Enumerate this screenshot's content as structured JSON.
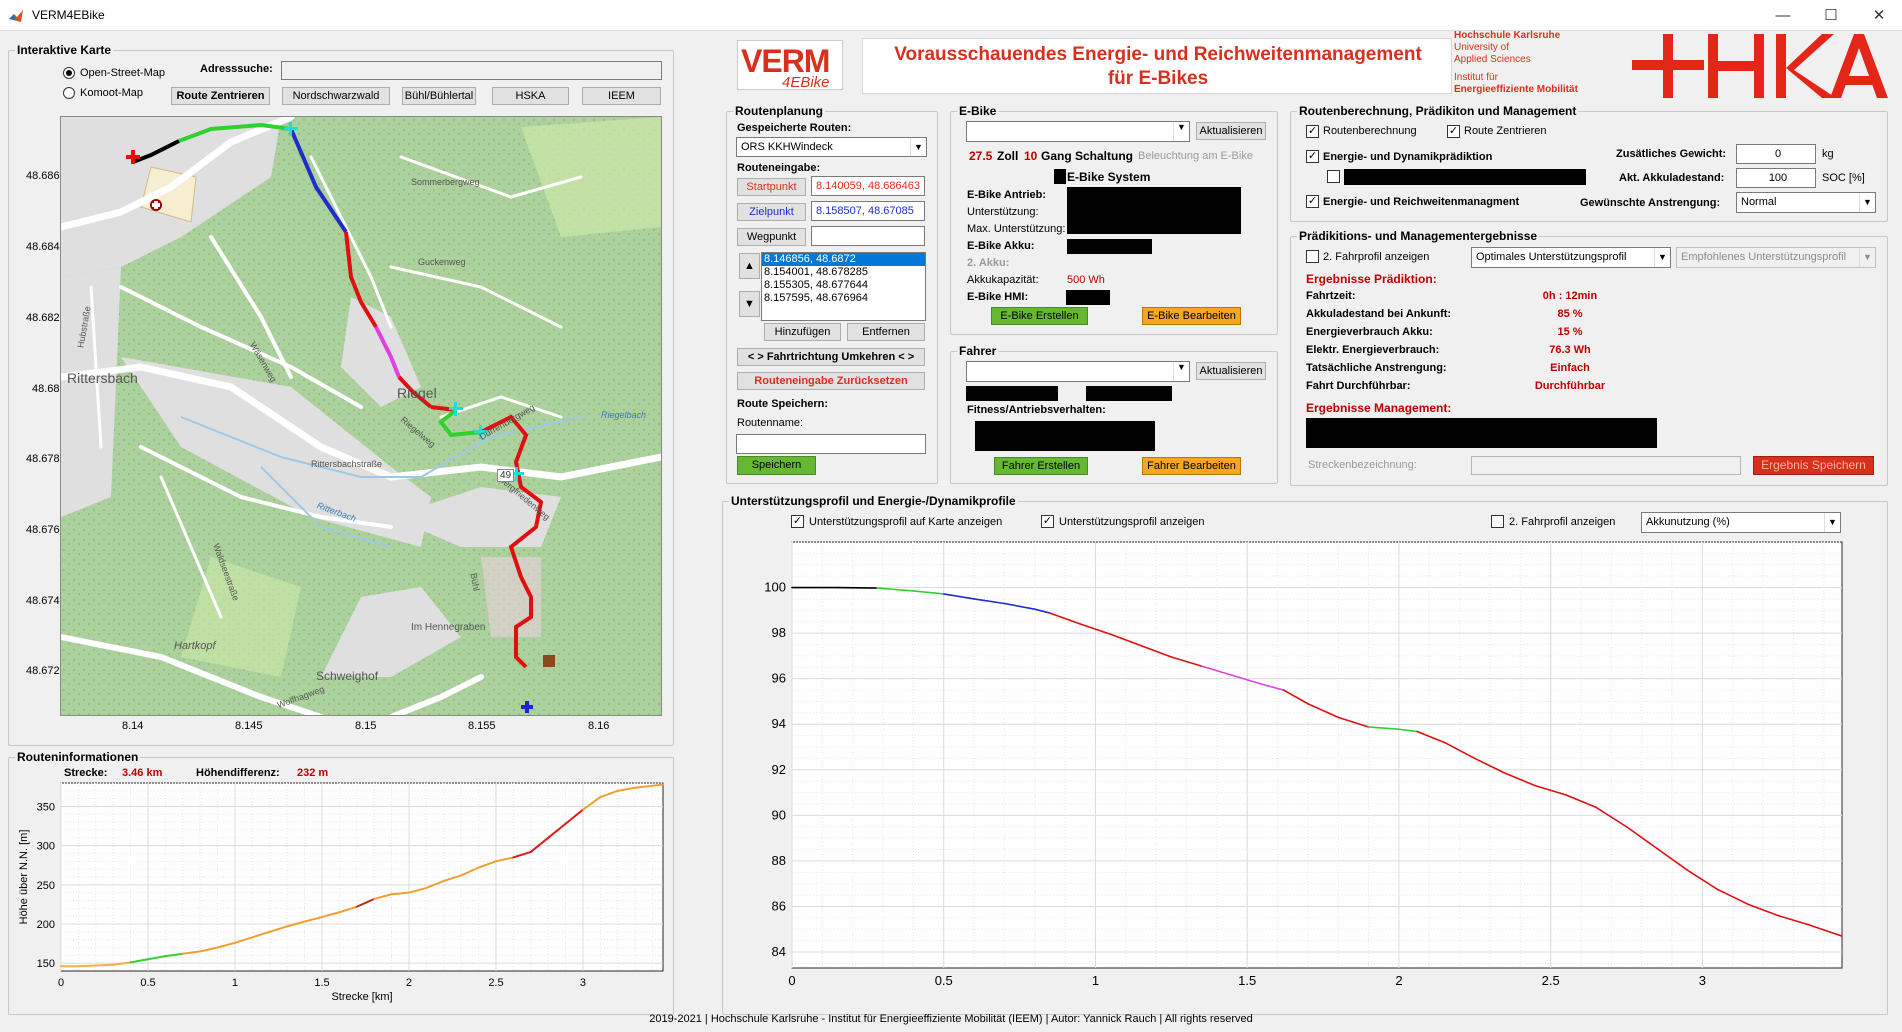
{
  "window": {
    "title": "VERM4EBike",
    "icon": "matlab-icon",
    "min": "—",
    "max": "☐",
    "close": "✕"
  },
  "header": {
    "title_line1": "Vorausschauendes Energie- und Reichweitenmanagement",
    "title_line2": "für E-Bikes",
    "logo_verm": "VERM",
    "logo_sub": "4EBike",
    "uni1": "Hochschule Karlsruhe",
    "uni2": "University of",
    "uni3": "Applied Sciences",
    "inst1": "Institut für",
    "inst2": "Energieeffiziente Mobilität",
    "hka": "+IKA"
  },
  "map_panel": {
    "title": "Interaktive Karte",
    "address_label": "Adresssuche:",
    "address_value": "",
    "radio1": "Open-Street-Map",
    "radio2": "Komoot-Map",
    "btn_center": "Route Zentrieren",
    "btn_nord": "Nordschwarzwald",
    "btn_buehl": "Bühl/Bühlertal",
    "btn_hska": "HSKA",
    "btn_ieem": "IEEM",
    "y_ticks": [
      "48.686",
      "48.684",
      "48.682",
      "48.68",
      "48.678",
      "48.676",
      "48.674",
      "48.672"
    ],
    "x_ticks": [
      "8.14",
      "8.145",
      "8.15",
      "8.155",
      "8.16"
    ],
    "places": {
      "rittersbach": "Rittersbach",
      "riegel": "Riegel",
      "hennegraben": "Im Hennegraben",
      "schweighof": "Schweighof",
      "hartkopf": "Hartkopf",
      "s1": "Guckenweg",
      "s2": "Sommerbergweg",
      "s3": "Rittersbachstraße",
      "s4": "Dürrenbergweg",
      "s5": "Riegelweg",
      "s6": "Bergfriedenweg",
      "s7": "Hubstraße",
      "s8": "Wäsenweg",
      "s9": "Waldseestraße",
      "s10": "Riegelbach",
      "s11": "Ritterbach",
      "s12": "Bühl",
      "s13": "Wolfhagweg",
      "s14": "49"
    }
  },
  "route_info": {
    "title": "Routeninformationen",
    "strecke_label": "Strecke:",
    "strecke_value": "3.46 km",
    "hoehe_label": "Höhendifferenz:",
    "hoehe_value": "232 m",
    "ylabel": "Höhe über N.N. [m]",
    "xlabel": "Strecke [km]",
    "y_ticks": [
      "350",
      "300",
      "250",
      "200",
      "150"
    ],
    "x_ticks": [
      "0",
      "0.5",
      "1",
      "1.5",
      "2",
      "2.5",
      "3"
    ]
  },
  "routenplanung": {
    "title": "Routenplanung",
    "saved_label": "Gespeicherte Routen:",
    "saved_value": "ORS KKHWindeck",
    "input_label": "Routeneingabe:",
    "start_btn": "Startpunkt",
    "start_value": "8.140059, 48.686463",
    "ziel_btn": "Zielpunkt",
    "ziel_value": "8.158507, 48.67085",
    "weg_btn": "Wegpunkt",
    "weg_value": "",
    "list": [
      "8.146856, 48.6872",
      "8.154001, 48.678285",
      "8.155305, 48.677644",
      "8.157595, 48.676964"
    ],
    "up": "▲",
    "down": "▼",
    "add": "Hinzufügen",
    "remove": "Entfernen",
    "reverse": "< > Fahrtrichtung Umkehren < >",
    "reset": "Routeneingabe Zurücksetzen",
    "save_label": "Route Speichern:",
    "name_label": "Routenname:",
    "name_value": "",
    "save_btn": "Speichern"
  },
  "ebike": {
    "title": "E-Bike",
    "select": "",
    "refresh": "Aktualisieren",
    "size_val": "27.5",
    "size_lbl": "Zoll",
    "gang_val": "10",
    "gang_lbl": "Gang Schaltung",
    "light": "Beleuchtung am E-Bike",
    "system": "E-Bike System",
    "antrieb": "E-Bike Antrieb:",
    "unterst": "Unterstützung:",
    "maxunterst": "Max. Unterstützung:",
    "akku": "E-Bike Akku:",
    "akku2": "2. Akku:",
    "kap_lbl": "Akkukapazität:",
    "kap_val": "500 Wh",
    "hmi": "E-Bike HMI:",
    "create": "E-Bike Erstellen",
    "edit": "E-Bike Bearbeiten"
  },
  "fahrer": {
    "title": "Fahrer",
    "select": "",
    "refresh": "Aktualisieren",
    "fitness": "Fitness/Antriebsverhalten:",
    "create": "Fahrer Erstellen",
    "edit": "Fahrer Bearbeiten"
  },
  "berechnung": {
    "title": "Routenberechnung, Prädikiton und Management",
    "cb1": "Routenberechnung",
    "cb2": "Route Zentrieren",
    "cb3": "Energie- und Dynamikprädiktion",
    "cb5": "Energie- und Reichweitenmanagment",
    "gew_lbl": "Zusätliches Gewicht:",
    "gew_val": "0",
    "gew_unit": "kg",
    "akku_lbl": "Akt. Akkuladestand:",
    "akku_val": "100",
    "akku_unit": "SOC  [%]",
    "anstr_lbl": "Gewünschte Anstrengung:",
    "anstr_val": "Normal"
  },
  "ergebnisse": {
    "title": "Prädikitions- und Managementergebnisse",
    "cb": "2. Fahrprofil anzeigen",
    "sel1": "Optimales Unterstützungsprofil",
    "sel2": "Empfohlenes Unterstützungsprofil",
    "head_pred": "Ergebnisse Prädiktion:",
    "rows": [
      [
        "Fahrtzeit:",
        "0h : 12min"
      ],
      [
        "Akkuladestand bei Ankunft:",
        "85 %"
      ],
      [
        "Energieverbrauch Akku:",
        "15 %"
      ],
      [
        "Elektr. Energieverbrauch:",
        "76.3 Wh"
      ],
      [
        "Tatsächliche Anstrengung:",
        "Einfach"
      ],
      [
        "Fahrt Durchführbar:",
        "Durchführbar"
      ]
    ],
    "head_mgmt": "Ergebnisse Management:",
    "strecken_lbl": "Streckenbezeichnung:",
    "strecken_val": "",
    "save": "Ergebnis Speichern"
  },
  "profil": {
    "title": "Unterstützungsprofil und Energie-/Dynamikprofile",
    "cb1": "Unterstützungsprofil auf Karte anzeigen",
    "cb2": "Unterstützungsprofil anzeigen",
    "cb3": "2. Fahrprofil anzeigen",
    "sel": "Akkunutzung (%)",
    "y_ticks": [
      "100",
      "98",
      "96",
      "94",
      "92",
      "90",
      "88",
      "86",
      "84"
    ],
    "x_ticks": [
      "0",
      "0.5",
      "1",
      "1.5",
      "2",
      "2.5",
      "3"
    ]
  },
  "footer": "2019-2021   |   Hochschule Karlsruhe - Institut für Energieeffiziente Mobilität (IEEM)   |   Autor: Yannick Rauch |   All rights reserved",
  "chart_data": [
    {
      "type": "line",
      "title": "",
      "xlabel": "Strecke [km]",
      "ylabel": "Höhe über N.N. [m]",
      "xlim": [
        0,
        3.46
      ],
      "ylim": [
        140,
        380
      ],
      "x": [
        0,
        0.1,
        0.2,
        0.3,
        0.4,
        0.5,
        0.6,
        0.7,
        0.8,
        0.9,
        1.0,
        1.1,
        1.2,
        1.3,
        1.4,
        1.5,
        1.6,
        1.7,
        1.8,
        1.9,
        2.0,
        2.1,
        2.2,
        2.3,
        2.4,
        2.5,
        2.6,
        2.7,
        2.8,
        2.9,
        3.0,
        3.1,
        3.2,
        3.3,
        3.46
      ],
      "series": [
        {
          "values": [
            146,
            146,
            147,
            148,
            151,
            155,
            159,
            162,
            165,
            170,
            176,
            183,
            190,
            197,
            203,
            209,
            215,
            222,
            232,
            238,
            240,
            246,
            255,
            262,
            272,
            280,
            285,
            292,
            310,
            328,
            346,
            362,
            370,
            374,
            378
          ]
        }
      ]
    },
    {
      "type": "line",
      "title": "",
      "xlabel": "",
      "ylabel": "",
      "xlim": [
        0,
        3.46
      ],
      "ylim": [
        83.3,
        102
      ],
      "x": [
        0,
        0.15,
        0.28,
        0.4,
        0.5,
        0.6,
        0.7,
        0.8,
        0.85,
        0.95,
        1.05,
        1.15,
        1.25,
        1.35,
        1.45,
        1.55,
        1.62,
        1.7,
        1.8,
        1.9,
        2.0,
        2.06,
        2.15,
        2.25,
        2.35,
        2.45,
        2.55,
        2.65,
        2.75,
        2.85,
        2.95,
        3.05,
        3.15,
        3.25,
        3.35,
        3.46
      ],
      "series": [
        {
          "values": [
            100,
            100,
            99.98,
            99.85,
            99.72,
            99.5,
            99.3,
            99.05,
            98.88,
            98.4,
            97.95,
            97.45,
            96.95,
            96.55,
            96.15,
            95.75,
            95.5,
            94.9,
            94.3,
            93.88,
            93.78,
            93.68,
            93.2,
            92.5,
            91.85,
            91.3,
            90.9,
            90.35,
            89.5,
            88.55,
            87.6,
            86.75,
            86.1,
            85.6,
            85.2,
            84.7
          ]
        }
      ]
    }
  ]
}
